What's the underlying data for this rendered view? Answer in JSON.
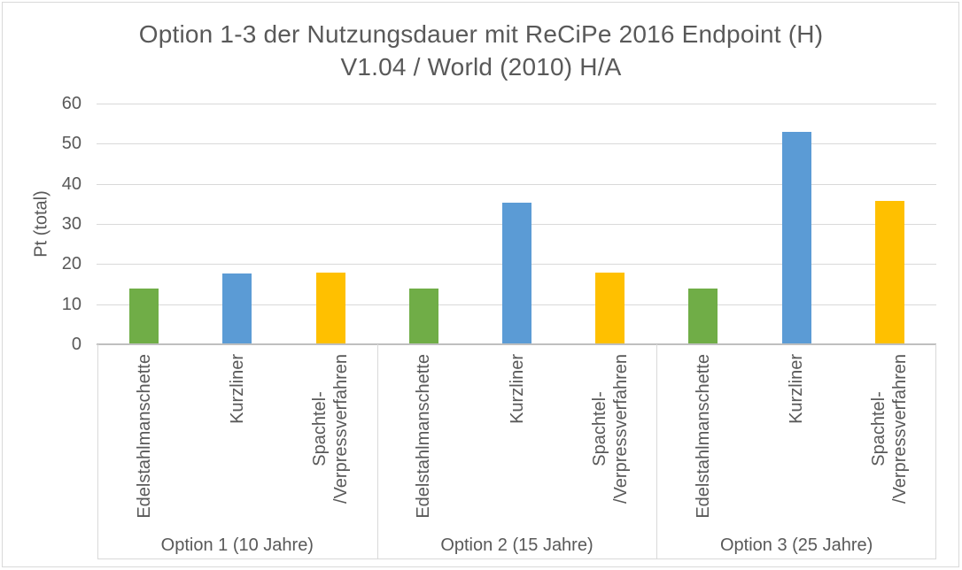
{
  "colors": {
    "background": "#FFFFFF",
    "chart_border": "#D9D9D9",
    "gridline": "#D9D9D9",
    "axis_line": "#BFBFBF",
    "text": "#595959",
    "bar_green": "#70AD47",
    "bar_blue": "#5B9BD5",
    "bar_gold": "#FFC000"
  },
  "chart_data": {
    "type": "bar",
    "title": "Option 1-3 der Nutzungsdauer mit ReCiPe 2016 Endpoint (H) V1.04 / World (2010) H/A",
    "title_lines": [
      "Option 1-3 der Nutzungsdauer mit ReCiPe 2016 Endpoint (H)",
      "V1.04 / World (2010) H/A"
    ],
    "xlabel": "",
    "ylabel": "Pt (total)",
    "ylim": [
      0,
      60
    ],
    "ytick_interval": 10,
    "ytick_labels": [
      "0",
      "10",
      "20",
      "30",
      "40",
      "50",
      "60"
    ],
    "grid": true,
    "legend_position": "none",
    "category_names": [
      "Edelstahlmanschette",
      "Kurzliner",
      "Spachtel-/Verpressverfahren"
    ],
    "category_label_lines": [
      [
        "Edelstahlmanschette"
      ],
      [
        "Kurzliner"
      ],
      [
        "Spachtel-",
        "/Verpressverfahren"
      ]
    ],
    "bar_colors": [
      "#70AD47",
      "#5B9BD5",
      "#FFC000"
    ],
    "groups": [
      {
        "label": "Option 1 (10 Jahre)",
        "values": [
          13.8,
          17.6,
          17.8
        ]
      },
      {
        "label": "Option 2 (15 Jahre)",
        "values": [
          13.8,
          35.4,
          17.8
        ]
      },
      {
        "label": "Option 3 (25 Jahre)",
        "values": [
          13.8,
          53.0,
          35.7
        ]
      }
    ]
  }
}
